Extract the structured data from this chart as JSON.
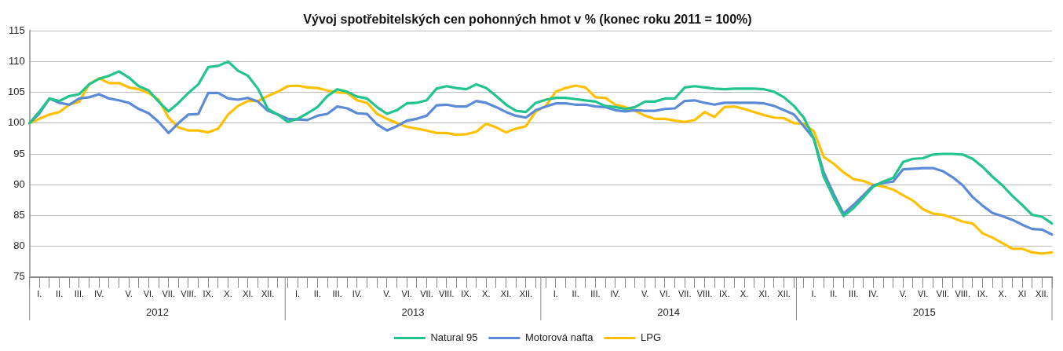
{
  "chart_data": {
    "type": "line",
    "title": "Vývoj spotřebitelských cen pohonných hmot v % (konec roku 2011 = 100%)",
    "categories": [
      null,
      "I.",
      null,
      "II.",
      null,
      "III.",
      null,
      "IV.",
      null,
      null,
      "V.",
      null,
      "VI.",
      null,
      "VII.",
      null,
      "VIII.",
      null,
      "IX.",
      null,
      "X.",
      null,
      "XI.",
      null,
      "XII.",
      null,
      null,
      "I.",
      null,
      "II.",
      null,
      "III.",
      null,
      "IV.",
      null,
      null,
      "V.",
      null,
      "VI.",
      null,
      "VII.",
      null,
      "VIII.",
      null,
      "IX.",
      null,
      "X.",
      null,
      "XI.",
      null,
      "XII.",
      null,
      null,
      "I.",
      null,
      "II.",
      null,
      "III.",
      null,
      "IV.",
      null,
      null,
      "V.",
      null,
      "VI.",
      null,
      "VII.",
      null,
      "VIII.",
      null,
      "IX.",
      null,
      "X.",
      null,
      "XI.",
      null,
      "XII.",
      null,
      null,
      "I.",
      null,
      "II.",
      null,
      "III.",
      null,
      "IV.",
      null,
      null,
      "V.",
      null,
      "VI.",
      null,
      "VII.",
      null,
      "VIII.",
      null,
      "IX.",
      null,
      "X.",
      null,
      "XI",
      null,
      "XII.",
      null
    ],
    "series": [
      {
        "name": "Natural 95",
        "color": "#21c48d",
        "values": [
          100,
          101.9,
          104.0,
          103.6,
          104.4,
          104.7,
          106.3,
          107.2,
          107.7,
          108.4,
          107.4,
          106.0,
          105.3,
          103.5,
          101.9,
          103.3,
          104.9,
          106.3,
          109.1,
          109.3,
          110.0,
          108.5,
          107.7,
          105.6,
          102.3,
          101.4,
          100.2,
          100.7,
          101.6,
          102.6,
          104.4,
          105.5,
          105.1,
          104.3,
          104.0,
          102.6,
          101.5,
          102.1,
          103.2,
          103.3,
          103.7,
          105.6,
          106.0,
          105.7,
          105.5,
          106.3,
          105.7,
          104.4,
          103.0,
          102.0,
          101.8,
          103.3,
          103.8,
          104.1,
          104.1,
          103.9,
          103.7,
          103.5,
          102.8,
          102.6,
          102.3,
          102.6,
          103.5,
          103.5,
          104.0,
          104.0,
          105.8,
          106.0,
          105.8,
          105.6,
          105.5,
          105.6,
          105.6,
          105.6,
          105.5,
          105.1,
          104.2,
          102.8,
          100.9,
          97.5,
          91.3,
          87.9,
          84.9,
          86.2,
          87.9,
          89.7,
          90.5,
          91.1,
          93.7,
          94.2,
          94.3,
          94.9,
          95.0,
          95.0,
          94.9,
          94.2,
          92.9,
          91.3,
          89.9,
          88.2,
          86.7,
          85.1,
          84.8,
          83.7
        ]
      },
      {
        "name": "Motorová nafta",
        "color": "#5b8bd6",
        "values": [
          100,
          101.6,
          104.0,
          103.3,
          103.0,
          104.0,
          104.2,
          104.7,
          104.0,
          103.7,
          103.3,
          102.3,
          101.6,
          100.2,
          98.4,
          100.0,
          101.4,
          101.5,
          104.9,
          104.9,
          104.0,
          103.8,
          104.1,
          103.5,
          102.0,
          101.4,
          100.7,
          100.6,
          100.5,
          101.2,
          101.5,
          102.7,
          102.4,
          101.6,
          101.5,
          99.8,
          98.8,
          99.5,
          100.4,
          100.7,
          101.2,
          102.9,
          103.0,
          102.7,
          102.7,
          103.6,
          103.3,
          102.6,
          101.8,
          101.2,
          100.9,
          102.1,
          102.7,
          103.2,
          103.2,
          103.0,
          103.0,
          102.7,
          102.6,
          102.1,
          101.9,
          102.1,
          102.0,
          102.0,
          102.3,
          102.4,
          103.6,
          103.7,
          103.3,
          103.0,
          103.3,
          103.3,
          103.3,
          103.3,
          103.2,
          102.8,
          102.1,
          101.4,
          99.5,
          97.5,
          92.0,
          88.5,
          85.3,
          86.7,
          88.3,
          89.9,
          90.3,
          90.5,
          92.5,
          92.6,
          92.7,
          92.7,
          92.2,
          91.2,
          89.9,
          88.0,
          86.6,
          85.4,
          84.9,
          84.3,
          83.5,
          82.8,
          82.7,
          81.9
        ]
      },
      {
        "name": "LPG",
        "color": "#ffc000",
        "values": [
          100,
          100.7,
          101.4,
          101.8,
          103.0,
          103.5,
          106.3,
          107.3,
          106.5,
          106.5,
          105.8,
          105.5,
          104.9,
          103.8,
          100.9,
          99.3,
          98.8,
          98.8,
          98.5,
          99.1,
          101.4,
          102.8,
          103.6,
          103.6,
          104.4,
          105.1,
          106.0,
          106.1,
          105.8,
          105.7,
          105.3,
          105.0,
          104.9,
          103.7,
          103.3,
          101.5,
          100.7,
          100.0,
          99.4,
          99.1,
          98.8,
          98.4,
          98.4,
          98.1,
          98.2,
          98.6,
          99.9,
          99.3,
          98.5,
          99.1,
          99.5,
          101.9,
          102.8,
          105.1,
          105.7,
          106.1,
          105.8,
          104.2,
          104.1,
          103.0,
          102.6,
          102.0,
          101.2,
          100.7,
          100.7,
          100.4,
          100.2,
          100.5,
          101.8,
          101.0,
          102.6,
          102.7,
          102.3,
          101.8,
          101.3,
          100.9,
          100.8,
          100.0,
          99.9,
          98.7,
          94.5,
          93.4,
          92.0,
          90.9,
          90.6,
          90.0,
          89.7,
          89.2,
          88.3,
          87.4,
          86.0,
          85.3,
          85.1,
          84.6,
          84.0,
          83.7,
          82.1,
          81.4,
          80.5,
          79.6,
          79.6,
          79.0,
          78.8,
          79.0
        ]
      }
    ],
    "ylim": [
      75,
      115
    ],
    "yticks": [
      75,
      80,
      85,
      90,
      95,
      100,
      105,
      110,
      115
    ],
    "grid": "y",
    "legend": "bottom",
    "marker": "none",
    "line_style": "solid",
    "annotations": [
      "2012",
      "2013",
      "2014",
      "2015"
    ]
  }
}
